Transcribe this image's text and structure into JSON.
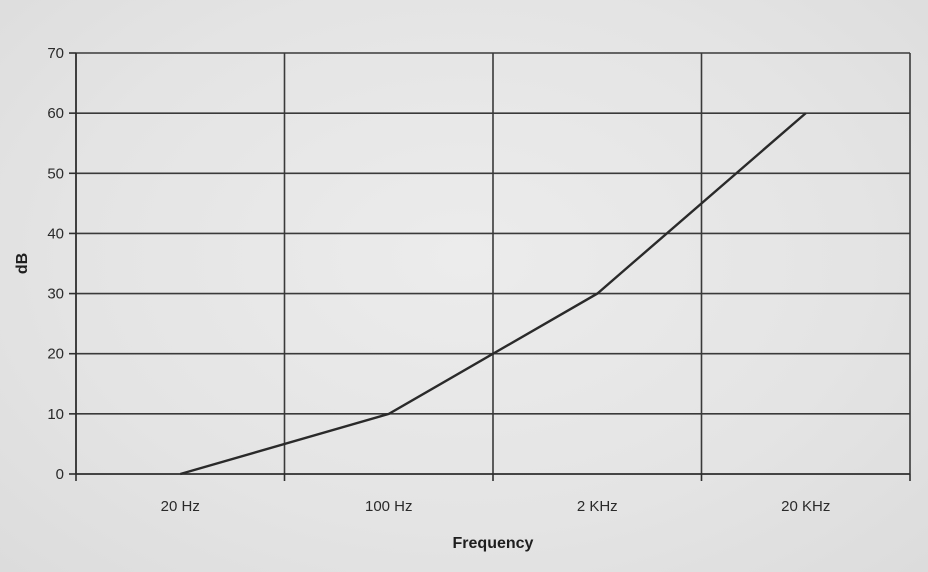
{
  "chart_data": {
    "type": "line",
    "title": "",
    "xlabel": "Frequency",
    "ylabel": "dB",
    "categories": [
      "20 Hz",
      "100 Hz",
      "2 KHz",
      "20 KHz"
    ],
    "ylim": [
      0,
      70
    ],
    "yticks": [
      0,
      10,
      20,
      30,
      40,
      50,
      60,
      70
    ],
    "grid": true,
    "series": [
      {
        "x": [
          "20 Hz",
          "100 Hz",
          "2 KHz",
          "20 KHz"
        ],
        "values": [
          0,
          10,
          30,
          60
        ]
      }
    ],
    "colors": {
      "line": "#2a2a2a",
      "grid": "#3a3a3a",
      "text": "#2a2a2a"
    }
  }
}
